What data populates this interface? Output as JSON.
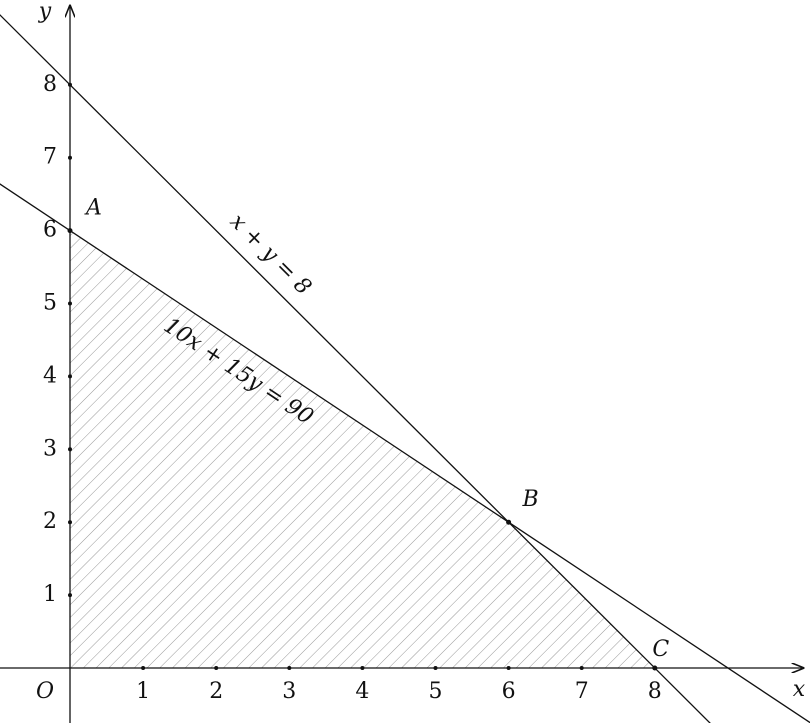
{
  "axes": {
    "x_label": "x",
    "y_label": "y",
    "origin_label": "O",
    "x_ticks": [
      1,
      2,
      3,
      4,
      5,
      6,
      7,
      8
    ],
    "y_ticks": [
      1,
      2,
      3,
      4,
      5,
      6,
      7,
      8
    ]
  },
  "points": [
    {
      "label": "A",
      "x": 0,
      "y": 6
    },
    {
      "label": "B",
      "x": 6,
      "y": 2
    },
    {
      "label": "C",
      "x": 8,
      "y": 0
    }
  ],
  "lines": [
    {
      "label": "x + y = 8"
    },
    {
      "label": "10x + 15y = 90"
    }
  ]
}
